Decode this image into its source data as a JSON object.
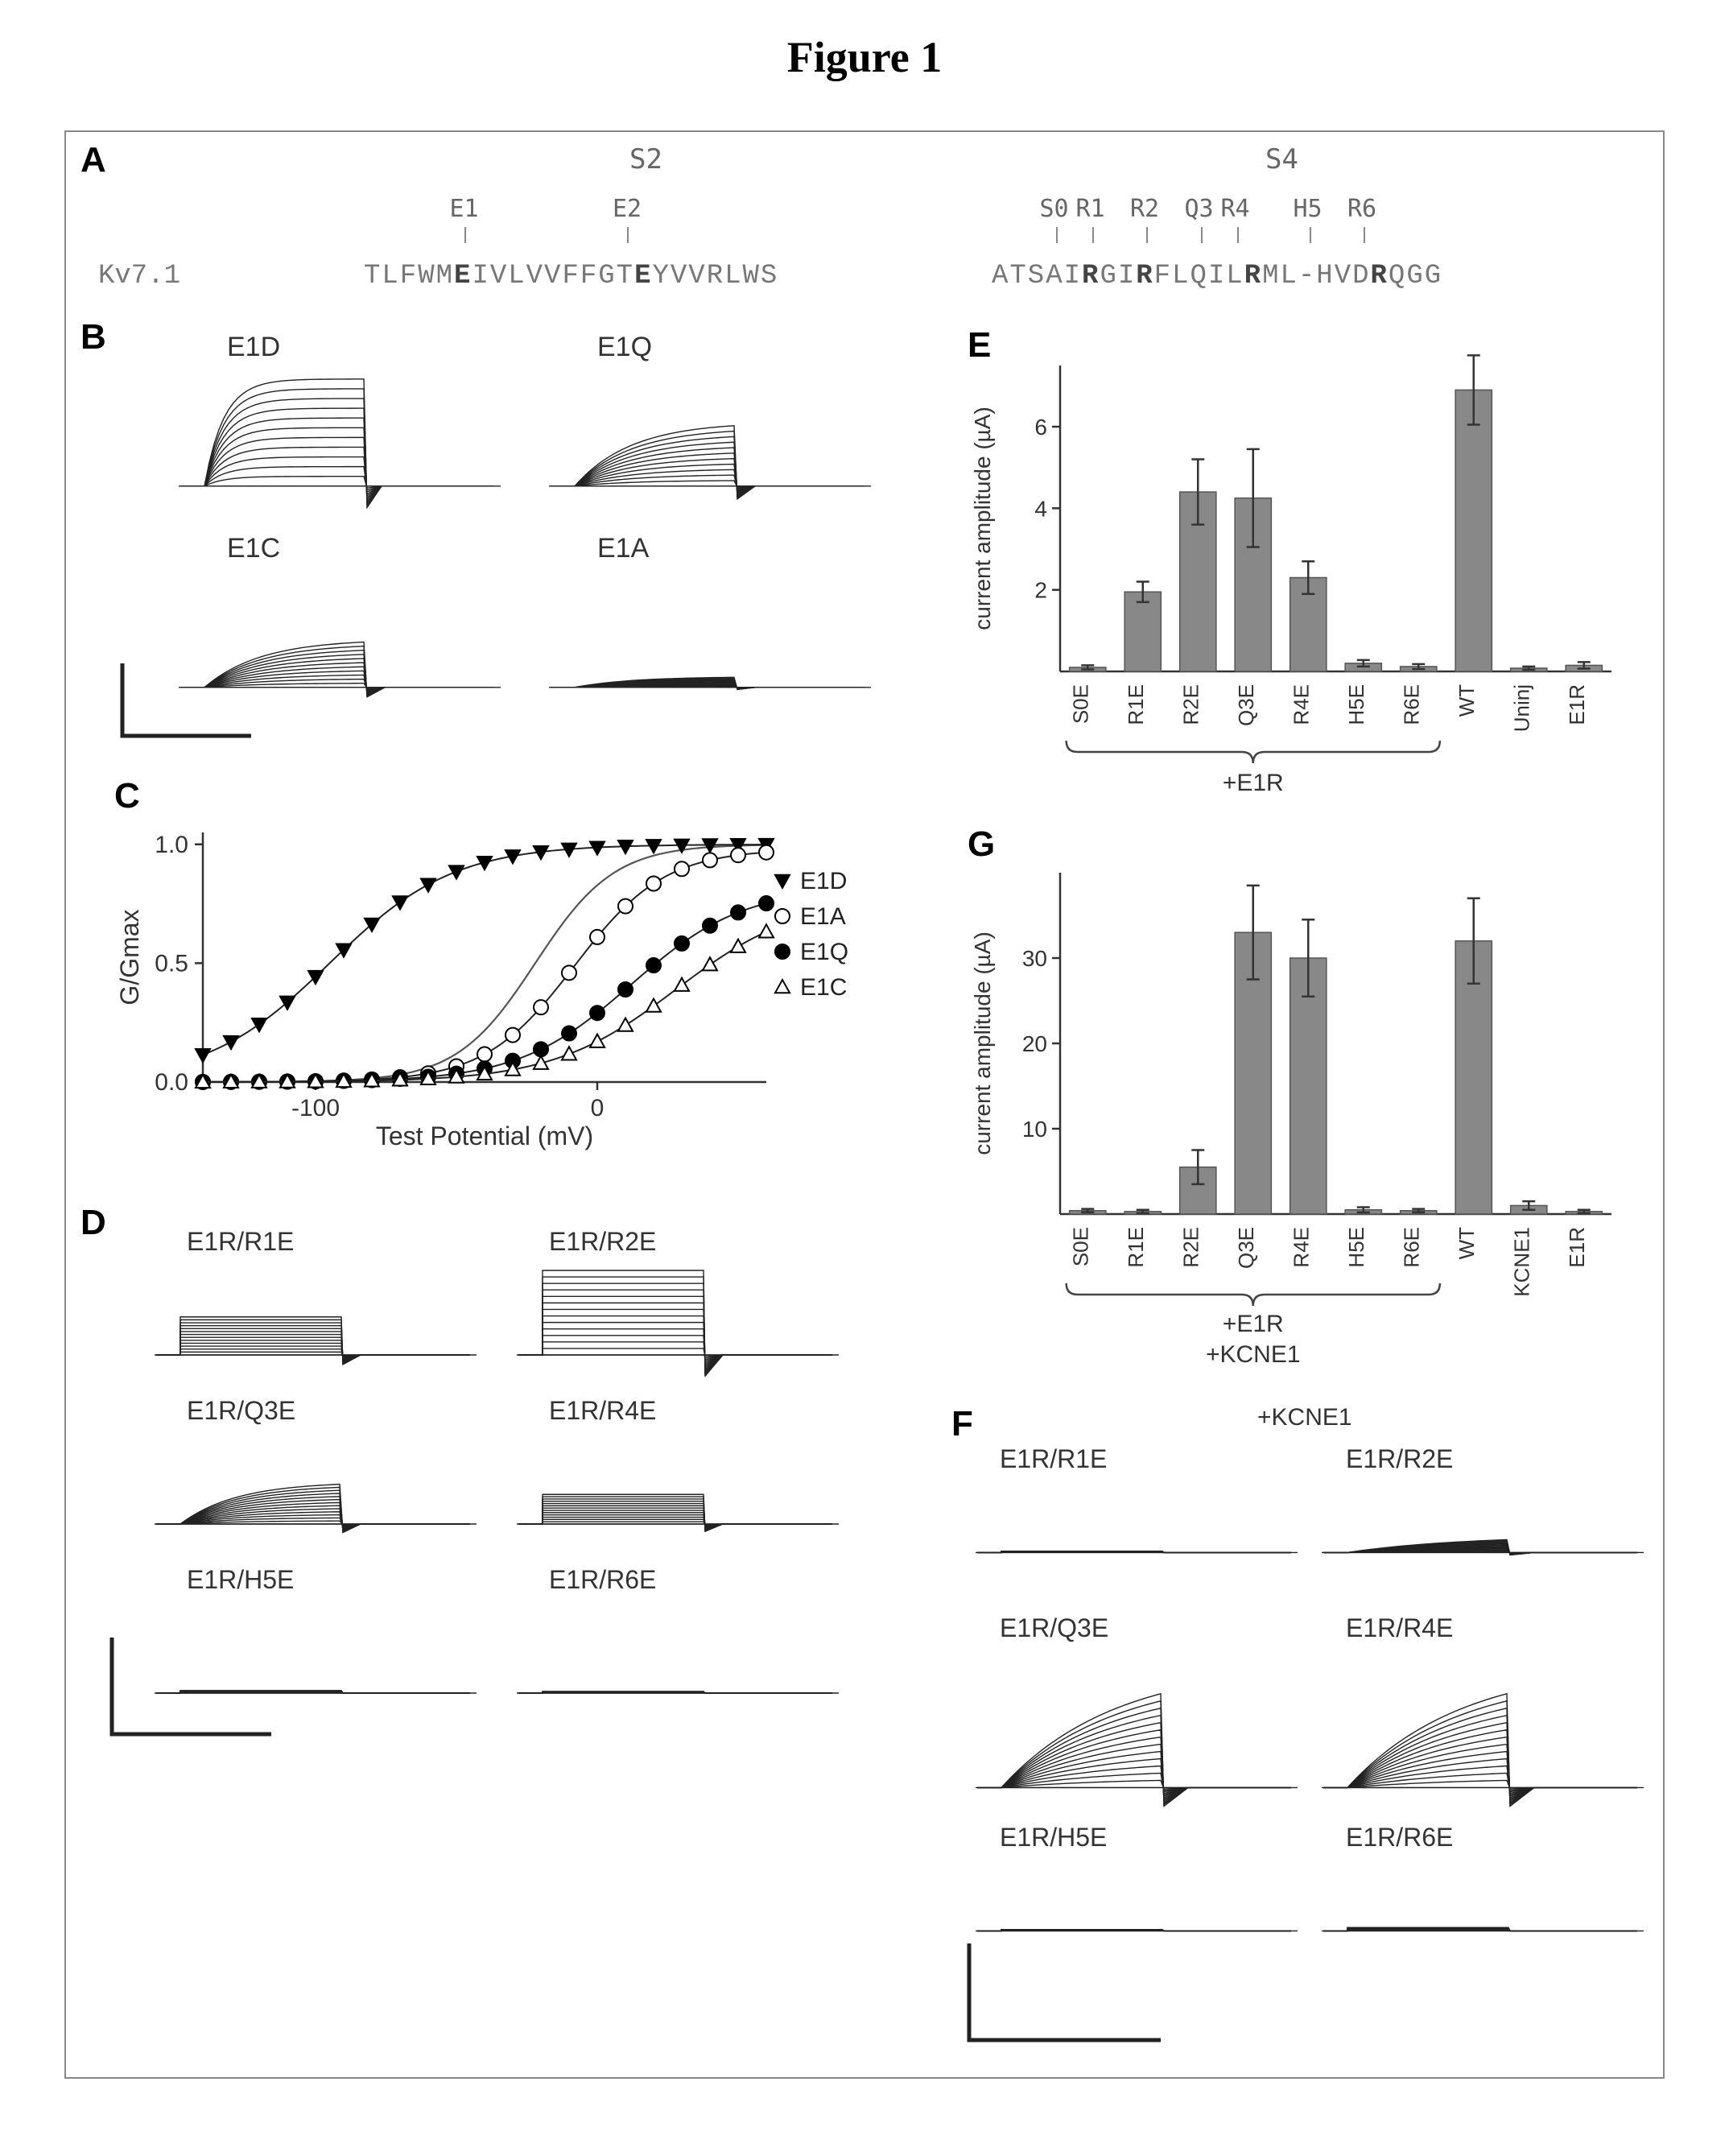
{
  "title": "Figure 1",
  "panelA": {
    "label": "A",
    "s2_header": "S2",
    "s4_header": "S4",
    "kv_label": "Kv7.1",
    "s2_positions": [
      "E1",
      "E2"
    ],
    "s4_positions": [
      "S0",
      "R1",
      "R2",
      "Q3",
      "R4",
      "H5",
      "R6"
    ],
    "s2_seq_pre": "TLFWM",
    "s2_seq_e1": "E",
    "s2_seq_mid": "IVLVVFFGT",
    "s2_seq_e2": "E",
    "s2_seq_post": "YVVRLWS",
    "s4_seq_pre": "ATSAI",
    "s4_seq_r1": "R",
    "s4_seq_m1": "GI",
    "s4_seq_r2": "R",
    "s4_seq_m2": "FLQIL",
    "s4_seq_r4": "R",
    "s4_seq_m3": "ML-HVD",
    "s4_seq_r6": "R",
    "s4_seq_post": "QGG"
  },
  "panelB": {
    "label": "B",
    "traces": [
      "E1D",
      "E1Q",
      "E1C",
      "E1A"
    ],
    "trace_color": "#222222",
    "n_traces": 12,
    "amplitudes": {
      "E1D": 1.0,
      "E1Q": 0.6,
      "E1C": 0.45,
      "E1A": 0.1
    },
    "activation_speed": {
      "E1D": "fast",
      "E1Q": "slow",
      "E1C": "slow",
      "E1A": "slow"
    }
  },
  "panelC": {
    "label": "C",
    "ylabel": "G/Gmax",
    "xlabel": "Test Potential (mV)",
    "xlim": [
      -140,
      60
    ],
    "ylim": [
      0,
      1.05
    ],
    "xticks": [
      -100,
      0
    ],
    "yticks": [
      0.0,
      0.5,
      1.0
    ],
    "background_color": "#ffffff",
    "axis_color": "#333333",
    "series": [
      {
        "name": "E1D",
        "marker": "triangle-down",
        "fill": "#000000",
        "v50": -95,
        "slope": 22,
        "max": 1.0
      },
      {
        "name": "E1A",
        "marker": "circle",
        "fill": "none",
        "v50": -8,
        "slope": 16,
        "max": 0.98
      },
      {
        "name": "E1Q",
        "marker": "circle",
        "fill": "#000000",
        "v50": 12,
        "slope": 20,
        "max": 0.82
      },
      {
        "name": "E1C",
        "marker": "triangle-up",
        "fill": "none",
        "v50": 28,
        "slope": 22,
        "max": 0.78
      }
    ],
    "wt_curve": {
      "v50": -22,
      "slope": 14,
      "max": 1.0,
      "color": "#555555"
    },
    "x_points": [
      -140,
      -130,
      -120,
      -110,
      -100,
      -90,
      -80,
      -70,
      -60,
      -50,
      -40,
      -30,
      -20,
      -10,
      0,
      10,
      20,
      30,
      40,
      50,
      60
    ],
    "legend": [
      "E1D",
      "E1A",
      "E1Q",
      "E1C"
    ]
  },
  "panelD": {
    "label": "D",
    "traces": [
      "E1R/R1E",
      "E1R/R2E",
      "E1R/Q3E",
      "E1R/R4E",
      "E1R/H5E",
      "E1R/R6E"
    ],
    "amplitudes": {
      "E1R/R1E": 0.45,
      "E1R/R2E": 1.0,
      "E1R/Q3E": 0.5,
      "E1R/R4E": 0.35,
      "E1R/H5E": 0.03,
      "E1R/R6E": 0.02
    },
    "shape": {
      "E1R/R1E": "step",
      "E1R/R2E": "step",
      "E1R/Q3E": "rise",
      "E1R/R4E": "step",
      "E1R/H5E": "flat",
      "E1R/R6E": "flat"
    },
    "trace_color": "#222222"
  },
  "panelE": {
    "label": "E",
    "ylabel": "current amplitude (µA)",
    "ylim": [
      0,
      7.5
    ],
    "yticks": [
      2,
      4,
      6
    ],
    "categories": [
      "S0E",
      "R1E",
      "R2E",
      "Q3E",
      "R4E",
      "H5E",
      "R6E",
      "WT",
      "Uninj",
      "E1R"
    ],
    "values": [
      0.1,
      1.95,
      4.4,
      4.25,
      2.3,
      0.2,
      0.12,
      6.9,
      0.08,
      0.15
    ],
    "errors": [
      0.05,
      0.25,
      0.8,
      1.2,
      0.4,
      0.08,
      0.06,
      0.85,
      0.04,
      0.08
    ],
    "bar_color": "#888888",
    "error_color": "#333333",
    "axis_color": "#333333",
    "brace_cols": 7,
    "brace_label": "+E1R"
  },
  "panelF": {
    "label": "F",
    "header": "+KCNE1",
    "traces": [
      "E1R/R1E",
      "E1R/R2E",
      "E1R/Q3E",
      "E1R/R4E",
      "E1R/H5E",
      "E1R/R6E"
    ],
    "amplitudes": {
      "E1R/R1E": 0.02,
      "E1R/R2E": 0.25,
      "E1R/Q3E": 1.0,
      "E1R/R4E": 1.0,
      "E1R/H5E": 0.02,
      "E1R/R6E": 0.05
    },
    "shape": {
      "E1R/R1E": "flat",
      "E1R/R2E": "slowrise",
      "E1R/Q3E": "slowrise",
      "E1R/R4E": "slowrise",
      "E1R/H5E": "flat",
      "E1R/R6E": "flat"
    },
    "trace_color": "#222222"
  },
  "panelG": {
    "label": "G",
    "ylabel": "current amplitude (µA)",
    "ylim": [
      0,
      40
    ],
    "yticks": [
      10,
      20,
      30
    ],
    "categories": [
      "S0E",
      "R1E",
      "R2E",
      "Q3E",
      "R4E",
      "H5E",
      "R6E",
      "WT",
      "KCNE1",
      "E1R"
    ],
    "values": [
      0.4,
      0.3,
      5.5,
      33.0,
      30.0,
      0.5,
      0.4,
      32.0,
      1.0,
      0.3
    ],
    "errors": [
      0.2,
      0.2,
      2.0,
      5.5,
      4.5,
      0.3,
      0.2,
      5.0,
      0.5,
      0.2
    ],
    "bar_color": "#888888",
    "error_color": "#333333",
    "axis_color": "#333333",
    "brace_cols": 7,
    "brace_label1": "+E1R",
    "brace_label2": "+KCNE1"
  },
  "style": {
    "font_family": "Arial",
    "mono_font": "Courier New",
    "panel_label_fontsize": 44,
    "trace_label_fontsize": 34,
    "axis_fontsize": 30
  }
}
